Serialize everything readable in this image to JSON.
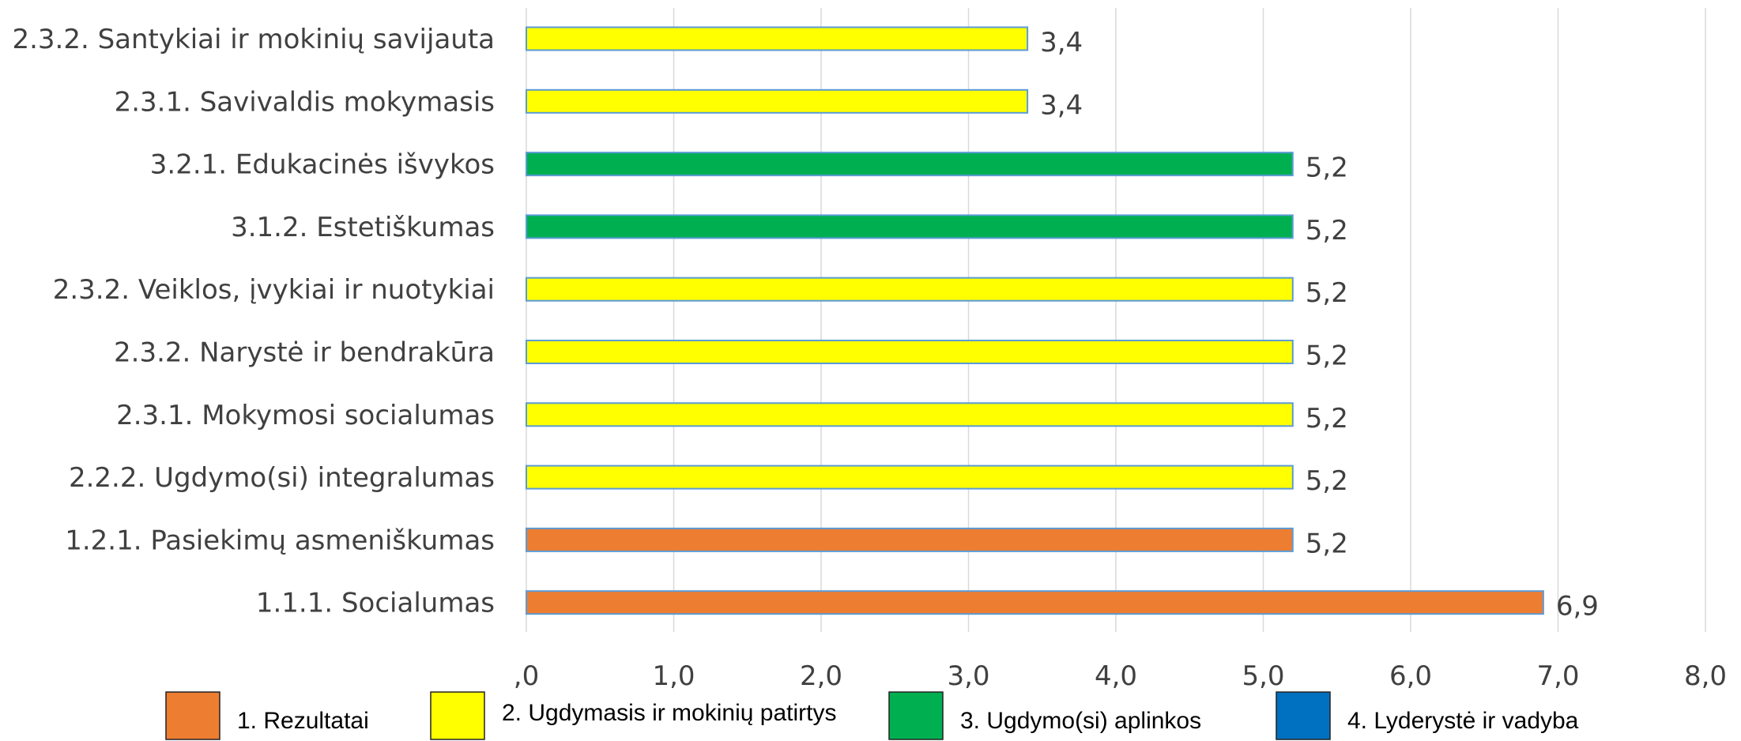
{
  "chart_data": {
    "type": "bar",
    "orientation": "horizontal",
    "categories": [
      "2.3.2. Santykiai ir mokinių savijauta",
      "2.3.1. Savivaldis mokymasis",
      "3.2.1. Edukacinės išvykos",
      "3.1.2. Estetiškumas",
      "2.3.2. Veiklos, įvykiai ir nuotykiai",
      "2.3.2. Narystė ir bendrakūra",
      "2.3.1. Mokymosi socialumas",
      "2.2.2. Ugdymo(si) integralumas",
      "1.2.1. Pasiekimų asmeniškumas",
      "1.1.1. Socialumas"
    ],
    "values": [
      3.4,
      3.4,
      5.2,
      5.2,
      5.2,
      5.2,
      5.2,
      5.2,
      5.2,
      6.9
    ],
    "data_labels": [
      "3,4",
      "3,4",
      "5,2",
      "5,2",
      "5,2",
      "5,2",
      "5,2",
      "5,2",
      "5,2",
      "6,9"
    ],
    "bar_groups": [
      2,
      2,
      3,
      3,
      2,
      2,
      2,
      2,
      1,
      1
    ],
    "xlim": [
      0,
      8
    ],
    "x_ticks": [
      ",0",
      "1,0",
      "2,0",
      "3,0",
      "4,0",
      "5,0",
      "6,0",
      "7,0",
      "8,0"
    ],
    "grid": "vertical",
    "title": "",
    "xlabel": "",
    "ylabel": "",
    "legend_position": "bottom",
    "legend": [
      {
        "group": 1,
        "label": "1. Rezultatai",
        "color": "#ed7d31"
      },
      {
        "group": 2,
        "label": "2. Ugdymasis ir mokinių patirtys",
        "color": "#ffff00"
      },
      {
        "group": 3,
        "label": "3. Ugdymo(si) aplinkos",
        "color": "#00b050"
      },
      {
        "group": 4,
        "label": "4. Lyderystė ir vadyba",
        "color": "#0070c0"
      }
    ]
  }
}
